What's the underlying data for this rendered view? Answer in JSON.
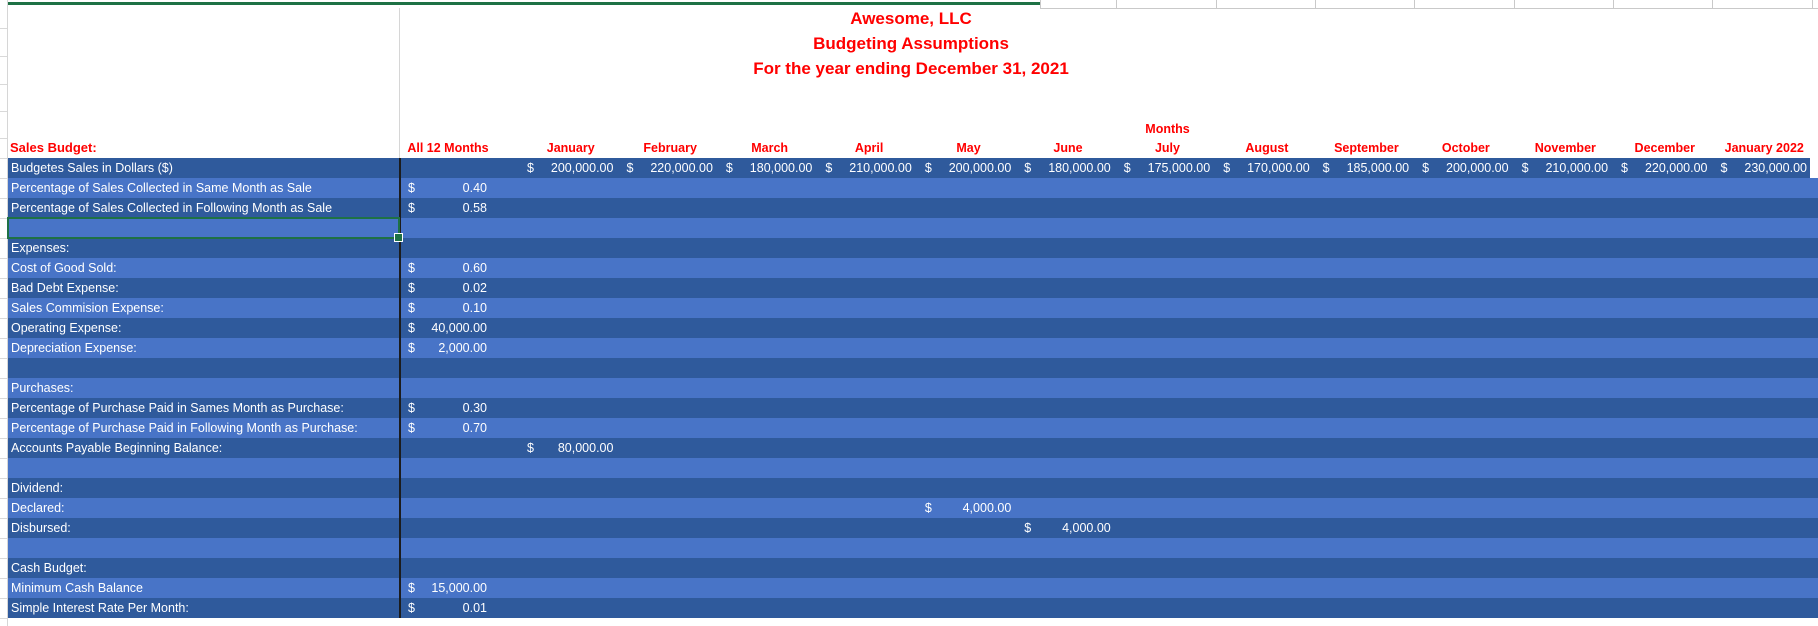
{
  "title": {
    "company": "Awesome, LLC",
    "subtitle": "Budgeting Assumptions",
    "period": "For the year ending December 31, 2021"
  },
  "header": {
    "section_label": "Sales Budget:",
    "all12_label": "All 12 Months",
    "months_group_label": "Months",
    "months": [
      "January",
      "February",
      "March",
      "April",
      "May",
      "June",
      "July",
      "August",
      "September",
      "October",
      "November",
      "December",
      "January 2022"
    ]
  },
  "currency_symbol": "$",
  "rows": [
    {
      "label": "Budgetes Sales in Dollars ($)",
      "months": {
        "0": "200,000.00",
        "1": "220,000.00",
        "2": "180,000.00",
        "3": "210,000.00",
        "4": "200,000.00",
        "5": "180,000.00",
        "6": "175,000.00",
        "7": "170,000.00",
        "8": "185,000.00",
        "9": "200,000.00",
        "10": "210,000.00",
        "11": "220,000.00",
        "12": "230,000.00"
      }
    },
    {
      "label": "Percentage of Sales Collected in Same Month as Sale",
      "all12": "0.40"
    },
    {
      "label": "Percentage of Sales Collected in Following Month as Sale",
      "all12": "0.58"
    },
    {
      "label": "",
      "selected": true
    },
    {
      "label": "Expenses:"
    },
    {
      "label": "Cost of Good Sold:",
      "all12": "0.60"
    },
    {
      "label": "Bad Debt Expense:",
      "all12": "0.02"
    },
    {
      "label": "Sales Commision Expense:",
      "all12": "0.10"
    },
    {
      "label": "Operating Expense:",
      "all12": "40,000.00"
    },
    {
      "label": "Depreciation Expense:",
      "all12": "2,000.00"
    },
    {
      "label": ""
    },
    {
      "label": "Purchases:"
    },
    {
      "label": "Percentage of Purchase Paid in Sames Month as Purchase:",
      "all12": "0.30"
    },
    {
      "label": "Percentage of Purchase Paid in Following Month as Purchase:",
      "all12": "0.70"
    },
    {
      "label": "Accounts Payable Beginning Balance:",
      "months": {
        "0": "80,000.00"
      }
    },
    {
      "label": ""
    },
    {
      "label": "Dividend:"
    },
    {
      "label": "Declared:",
      "months": {
        "4": "4,000.00"
      }
    },
    {
      "label": "Disbursed:",
      "months": {
        "5": "4,000.00"
      }
    },
    {
      "label": ""
    },
    {
      "label": "Cash Budget:"
    },
    {
      "label": "Minimum Cash Balance",
      "all12": "15,000.00"
    },
    {
      "label": "Simple Interest Rate Per Month:",
      "all12": "0.01"
    }
  ],
  "colors": {
    "accent_red": "#FF0000",
    "row_dark": "#2F5A9C",
    "row_light": "#4874C7",
    "selection_green": "#1E7145"
  }
}
